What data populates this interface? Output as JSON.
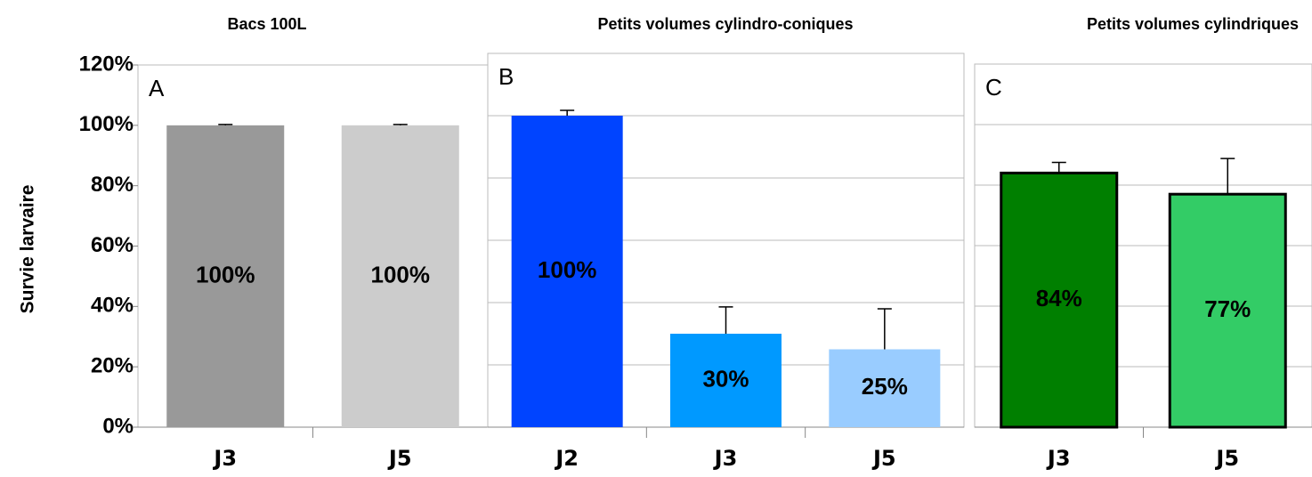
{
  "chart_data": [
    {
      "type": "bar",
      "title": "Bacs 100L",
      "annotation": "A",
      "y_label": "Survie larvaire",
      "categories": [
        "J3",
        "J5"
      ],
      "values": [
        100,
        100
      ],
      "value_labels": [
        "100%",
        "100%"
      ],
      "errors": [
        0.3,
        0.3
      ],
      "colors": [
        "#999999",
        "#cccccc"
      ],
      "ylim": [
        0,
        120
      ],
      "yticks": [
        {
          "value": 0,
          "label": "0%"
        },
        {
          "value": 20,
          "label": "20%"
        },
        {
          "value": 40,
          "label": "40%"
        },
        {
          "value": 60,
          "label": "60%"
        },
        {
          "value": 80,
          "label": "80%"
        },
        {
          "value": 100,
          "label": "100%"
        },
        {
          "value": 120,
          "label": "120%"
        }
      ],
      "grid": false
    },
    {
      "type": "bar",
      "title": "Petits volumes cylindro-coniques",
      "annotation": "B",
      "categories": [
        "J2",
        "J3",
        "J5"
      ],
      "values": [
        100,
        30,
        25
      ],
      "value_labels": [
        "100%",
        "30%",
        "25%"
      ],
      "errors": [
        1.7,
        8.6,
        13
      ],
      "colors": [
        "#0044ff",
        "#0099ff",
        "#99ccff"
      ],
      "ylim": [
        0,
        120
      ],
      "yticks": [
        0,
        20,
        40,
        60,
        80,
        100,
        120
      ],
      "grid": true
    },
    {
      "type": "bar",
      "title": "Petits volumes cylindriques",
      "annotation": "C",
      "categories": [
        "J3",
        "J5"
      ],
      "values": [
        84,
        77
      ],
      "value_labels": [
        "84%",
        "77%"
      ],
      "errors": [
        3.5,
        11.8
      ],
      "colors": [
        "#007f00",
        "#33cc66"
      ],
      "bar_border": "#000000",
      "ylim": [
        0,
        120
      ],
      "yticks": [
        0,
        20,
        40,
        60,
        80,
        100,
        120
      ],
      "grid": true
    }
  ]
}
